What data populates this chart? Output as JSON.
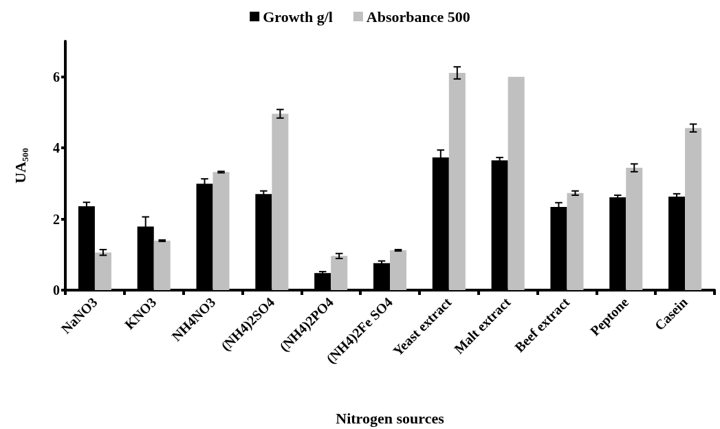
{
  "chart_data": {
    "type": "bar",
    "xlabel": "Nitrogen sources",
    "ylabel": "UA₅₀₀",
    "categories": [
      "NaNO3",
      "KNO3",
      "NH4NO3",
      "(NH4)2SO4",
      "(NH4)2PO4",
      "(NH4)2Fe SO4",
      "Yeast extract",
      "Malt extract",
      "Beef extract",
      "Peptone",
      "Casein"
    ],
    "series": [
      {
        "name": "Growth g/l",
        "color": "#000000",
        "values": [
          2.36,
          1.79,
          2.99,
          2.7,
          0.48,
          0.76,
          3.73,
          3.65,
          2.34,
          2.61,
          2.63
        ],
        "errors": [
          0.11,
          0.27,
          0.14,
          0.09,
          0.04,
          0.06,
          0.21,
          0.08,
          0.12,
          0.06,
          0.08
        ]
      },
      {
        "name": "Absorbance 500",
        "color": "#c0c0c0",
        "values": [
          1.06,
          1.39,
          3.32,
          4.96,
          0.96,
          1.12,
          6.11,
          6.0,
          2.73,
          3.44,
          4.56
        ],
        "errors": [
          0.08,
          0.02,
          0.02,
          0.12,
          0.07,
          0.02,
          0.17,
          null,
          0.06,
          0.11,
          0.11
        ]
      }
    ],
    "ylim": [
      0,
      7
    ],
    "yticks": [
      0,
      2,
      4,
      6
    ],
    "grid": false,
    "legend": "top"
  }
}
